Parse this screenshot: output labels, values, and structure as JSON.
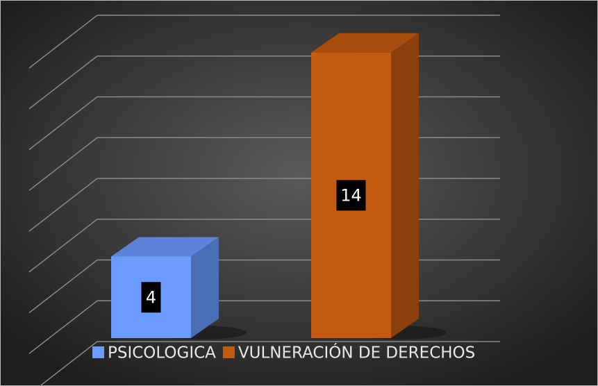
{
  "chart_data": {
    "type": "bar3d",
    "categories": [
      null
    ],
    "series": [
      {
        "name": "PSICOLOGICA",
        "color": "#6b9bff",
        "values": [
          4
        ]
      },
      {
        "name": "VULNERACIÓN DE DERECHOS",
        "color": "#c55a11",
        "values": [
          14
        ]
      }
    ],
    "ylim": [
      0,
      16
    ],
    "yticks": [
      0,
      2,
      4,
      6,
      8,
      10,
      12,
      14,
      16
    ],
    "grid": true,
    "legend": "bottom"
  }
}
